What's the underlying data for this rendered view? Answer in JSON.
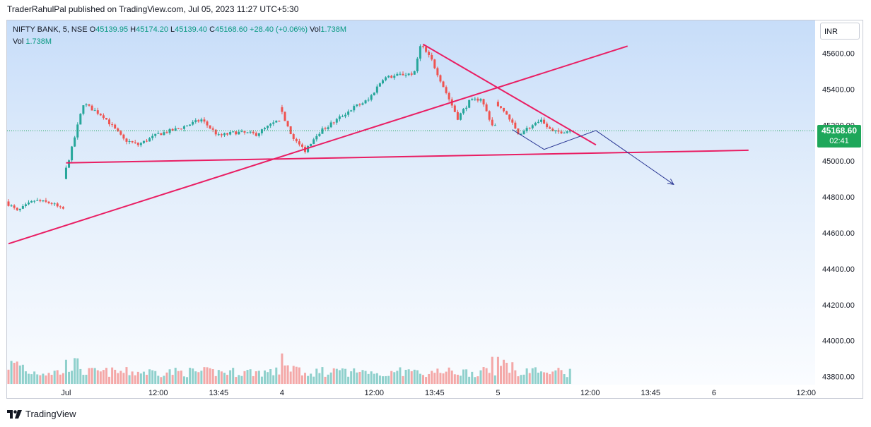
{
  "header": {
    "published_text": "TraderRahulPal published on TradingView.com, Jul 05, 2023 11:27 UTC+5:30"
  },
  "legend": {
    "symbol": "NIFTY BANK, 5, NSE",
    "open_label": "O",
    "open": "45139.95",
    "high_label": "H",
    "high": "45174.20",
    "low_label": "L",
    "low": "45139.40",
    "close_label": "C",
    "close": "45168.60",
    "change": "+28.40 (+0.06%)",
    "vol_label": "Vol",
    "vol": "1.738M",
    "vol2_label": "Vol",
    "vol2": "1.738M"
  },
  "currency": "INR",
  "last_price": {
    "price": "45168.60",
    "countdown": "02:41"
  },
  "footer": {
    "brand": "TradingView"
  },
  "colors": {
    "up": "#26a69a",
    "down": "#ef5350",
    "trendline": "#e91e63",
    "projection": "#283593",
    "tag": "#1ea75a"
  },
  "chart_data": {
    "type": "candlestick",
    "title": "NIFTY BANK, 5, NSE",
    "ylim": [
      43720,
      45840
    ],
    "y_ticks": [
      "45600.00",
      "45400.00",
      "45200.00",
      "45000.00",
      "44800.00",
      "44600.00",
      "44400.00",
      "44200.00",
      "44000.00",
      "43800.00"
    ],
    "y_tick_values": [
      45600,
      45400,
      45200,
      45000,
      44800,
      44600,
      44400,
      44200,
      44000,
      43800
    ],
    "x_ticks": [
      "Jul",
      "12:00",
      "13:45",
      "4",
      "12:00",
      "13:45",
      "5",
      "12:00",
      "13:45",
      "6",
      "12:00"
    ],
    "x_tick_bars": [
      20,
      52,
      73,
      95,
      127,
      148,
      170,
      202,
      223,
      245,
      277
    ],
    "last_close": 45168.6,
    "segments": [
      {
        "start": 0,
        "count": 20,
        "begin": 44775,
        "end": 44735,
        "waypoints": [
          [
            0,
            44775
          ],
          [
            4,
            44720
          ],
          [
            10,
            44780
          ],
          [
            16,
            44765
          ],
          [
            19,
            44735
          ]
        ]
      },
      {
        "start": 20,
        "count": 75,
        "begin": 44900,
        "end": 45220,
        "waypoints": [
          [
            0,
            44900
          ],
          [
            3,
            45070
          ],
          [
            7,
            45320
          ],
          [
            14,
            45250
          ],
          [
            21,
            45120
          ],
          [
            26,
            45090
          ],
          [
            33,
            45150
          ],
          [
            40,
            45180
          ],
          [
            48,
            45230
          ],
          [
            54,
            45140
          ],
          [
            60,
            45160
          ],
          [
            67,
            45150
          ],
          [
            74,
            45220
          ]
        ]
      },
      {
        "start": 95,
        "count": 75,
        "begin": 45300,
        "end": 45200,
        "waypoints": [
          [
            0,
            45300
          ],
          [
            5,
            45120
          ],
          [
            9,
            45060
          ],
          [
            13,
            45150
          ],
          [
            20,
            45230
          ],
          [
            26,
            45300
          ],
          [
            31,
            45340
          ],
          [
            36,
            45460
          ],
          [
            42,
            45480
          ],
          [
            47,
            45490
          ],
          [
            49,
            45650
          ],
          [
            53,
            45560
          ],
          [
            58,
            45380
          ],
          [
            62,
            45240
          ],
          [
            66,
            45330
          ],
          [
            70,
            45350
          ],
          [
            74,
            45200
          ]
        ]
      },
      {
        "start": 170,
        "count": 26,
        "begin": 45330,
        "end": 45168,
        "waypoints": [
          [
            0,
            45330
          ],
          [
            4,
            45260
          ],
          [
            8,
            45150
          ],
          [
            12,
            45190
          ],
          [
            16,
            45220
          ],
          [
            20,
            45160
          ],
          [
            25,
            45168
          ]
        ]
      }
    ],
    "volume_spikes": [
      [
        95,
        2.7
      ],
      [
        99,
        1.6
      ],
      [
        107,
        1.35
      ],
      [
        143,
        0.9
      ],
      [
        168,
        2.4
      ],
      [
        171,
        1.6
      ],
      [
        184,
        1.0
      ],
      [
        187,
        1.0
      ]
    ],
    "trendlines": [
      {
        "name": "support-line",
        "from": [
          20,
          44990
        ],
        "to": [
          257,
          45060
        ]
      },
      {
        "name": "rising-trendline",
        "from": [
          0,
          44540
        ],
        "to": [
          215,
          45640
        ]
      },
      {
        "name": "falling-trendline",
        "from": [
          144,
          45650
        ],
        "to": [
          204,
          45090
        ]
      }
    ],
    "projection_path": [
      [
        175,
        45175
      ],
      [
        186,
        45065
      ],
      [
        204,
        45170
      ],
      [
        231,
        44870
      ]
    ]
  }
}
